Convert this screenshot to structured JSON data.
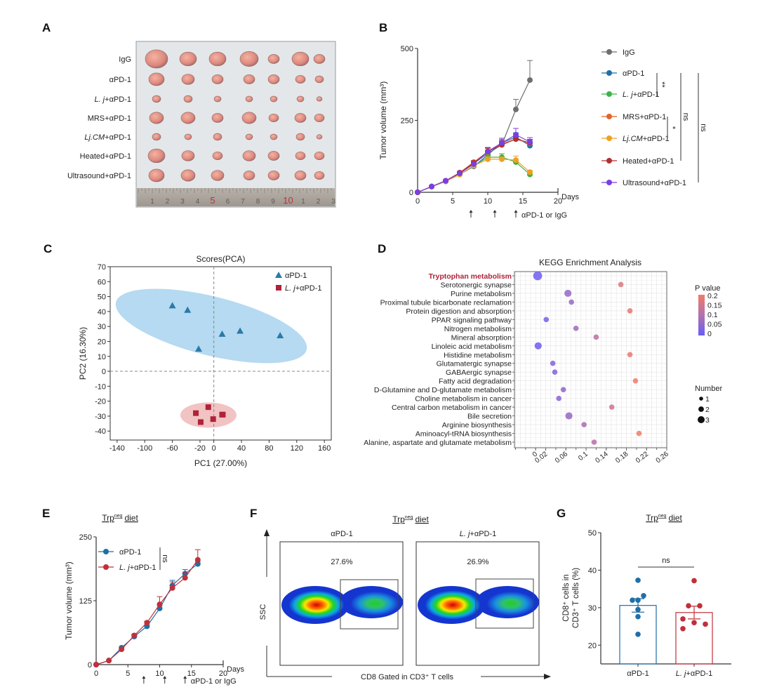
{
  "panels": {
    "A": {
      "label": "A",
      "rows": [
        {
          "text": "IgG"
        },
        {
          "text": "αPD-1"
        },
        {
          "italic": "L. j",
          "text": "+αPD-1"
        },
        {
          "text": "MRS+αPD-1"
        },
        {
          "italic": "Lj.CM",
          "text": "+αPD-1"
        },
        {
          "text": "Heated+αPD-1"
        },
        {
          "text": "Ultrasound+αPD-1"
        }
      ],
      "ruler_labels": [
        "1",
        "2",
        "3",
        "4",
        "5",
        "6",
        "7",
        "8",
        "9",
        "10",
        "1",
        "2",
        "3"
      ],
      "ruler_highlight_color": "#c0303a"
    },
    "B": {
      "label": "B"
    },
    "C": {
      "label": "C"
    },
    "D": {
      "label": "D"
    },
    "E": {
      "label": "E",
      "title": {
        "base": "Trp",
        "sup": "neg",
        "rest": "diet"
      }
    },
    "F": {
      "label": "F",
      "title": {
        "base": "Trp",
        "sup": "neg",
        "rest": "diet"
      },
      "plots": [
        {
          "label": {
            "text": "αPD-1"
          },
          "percent": "27.6%"
        },
        {
          "label": {
            "italic": "L. j",
            "text": "+αPD-1"
          },
          "percent": "26.9%"
        }
      ],
      "y_axis_label": "SSC",
      "x_axis_label": "CD8   Gated in CD3⁺ T cells"
    },
    "G": {
      "label": "G",
      "title": {
        "base": "Trp",
        "sup": "neg",
        "rest": "diet"
      }
    }
  },
  "chart_data": [
    {
      "id": "B",
      "type": "line",
      "ylabel": "Tumor volume (mm³)",
      "xlabel": "Days",
      "x": [
        0,
        2,
        4,
        6,
        8,
        10,
        12,
        14,
        16
      ],
      "xlim": [
        0,
        20
      ],
      "ylim": [
        0,
        500
      ],
      "xticks": [
        0,
        5,
        10,
        15,
        20
      ],
      "yticks": [
        0,
        250,
        500
      ],
      "treatment_days": [
        7.6,
        11,
        14
      ],
      "treatment_label": "αPD-1 or IgG",
      "series": [
        {
          "name": {
            "text": "IgG"
          },
          "color": "#6e6e6e",
          "values": [
            0,
            20,
            38,
            68,
            100,
            135,
            165,
            288,
            390
          ],
          "error": [
            0,
            2,
            3,
            5,
            8,
            10,
            12,
            35,
            68
          ]
        },
        {
          "name": {
            "text": "αPD-1"
          },
          "color": "#1f6fa8",
          "values": [
            0,
            20,
            38,
            62,
            90,
            130,
            172,
            192,
            162
          ],
          "error": [
            0,
            2,
            3,
            4,
            6,
            10,
            12,
            15,
            10
          ]
        },
        {
          "name": {
            "italic": "L. j",
            "text": "+αPD-1"
          },
          "color": "#3cb44b",
          "values": [
            0,
            20,
            38,
            62,
            92,
            122,
            122,
            105,
            62
          ],
          "error": [
            0,
            2,
            3,
            4,
            6,
            10,
            12,
            8,
            6
          ]
        },
        {
          "name": {
            "text": "MRS+αPD-1"
          },
          "color": "#e0662a",
          "values": [
            0,
            20,
            40,
            68,
            105,
            140,
            168,
            185,
            170
          ],
          "error": [
            0,
            2,
            3,
            4,
            6,
            12,
            15,
            15,
            12
          ]
        },
        {
          "name": {
            "italic": "Lj.CM",
            "text": "+αPD-1"
          },
          "color": "#f0a020",
          "values": [
            0,
            20,
            38,
            62,
            92,
            115,
            115,
            112,
            70
          ],
          "error": [
            0,
            2,
            3,
            4,
            6,
            8,
            8,
            14,
            6
          ]
        },
        {
          "name": {
            "text": "Heated+αPD-1"
          },
          "color": "#b0302e",
          "values": [
            0,
            20,
            40,
            68,
            102,
            142,
            165,
            185,
            172
          ],
          "error": [
            0,
            2,
            3,
            4,
            6,
            12,
            14,
            15,
            12
          ]
        },
        {
          "name": {
            "text": "Ultrasound+αPD-1"
          },
          "color": "#7a3fe0",
          "values": [
            0,
            20,
            40,
            66,
            98,
            142,
            172,
            200,
            175
          ],
          "error": [
            0,
            2,
            3,
            4,
            6,
            14,
            16,
            22,
            15
          ]
        }
      ],
      "significance": [
        {
          "between": [
            "αPD-1",
            "L. j+αPD-1"
          ],
          "label": "**"
        },
        {
          "between": [
            "MRS+αPD-1",
            "Lj.CM+αPD-1"
          ],
          "label": "*"
        },
        {
          "between": [
            "αPD-1",
            "Heated+αPD-1"
          ],
          "label": "ns"
        },
        {
          "between": [
            "αPD-1",
            "Ultrasound+αPD-1"
          ],
          "label": "ns"
        }
      ]
    },
    {
      "id": "C",
      "type": "scatter",
      "title": "Scores(PCA)",
      "xlabel": "PC1 (27.00%)",
      "ylabel": "PC2 (16.30%)",
      "xlim": [
        -150,
        170
      ],
      "ylim": [
        -46,
        70
      ],
      "xticks": [
        -140,
        -100,
        -60,
        -20,
        0,
        40,
        80,
        120,
        160
      ],
      "yticks": [
        70,
        60,
        50,
        40,
        30,
        20,
        10,
        0,
        -10,
        -20,
        -30,
        -40
      ],
      "legend": "top-right",
      "series": [
        {
          "name": {
            "text": "αPD-1"
          },
          "marker": "triangle",
          "color": "#2a7aa8",
          "ellipse_color": "#a8d4ee",
          "points": [
            [
              -60,
              44
            ],
            [
              -38,
              41
            ],
            [
              -22,
              15
            ],
            [
              12,
              25
            ],
            [
              38,
              27
            ],
            [
              96,
              24
            ]
          ]
        },
        {
          "name": {
            "italic": "L. j",
            "text": "+αPD-1"
          },
          "marker": "square",
          "color": "#b0223a",
          "ellipse_color": "#f0b8b8",
          "points": [
            [
              -26,
              -28
            ],
            [
              -8,
              -24
            ],
            [
              -19,
              -34
            ],
            [
              -1,
              -32
            ],
            [
              12,
              -29
            ],
            [
              13,
              -29
            ]
          ]
        }
      ]
    },
    {
      "id": "D",
      "type": "scatter",
      "title": "KEGG Enrichment Analysis",
      "xlim": [
        -0.042,
        0.26
      ],
      "xticks": [
        "0",
        "0.02",
        "0.06",
        "0.1",
        "0.14",
        "0.18",
        "0.22",
        "0.26"
      ],
      "highlight_color": "#b0223a",
      "color_legend": {
        "title": "P value",
        "ticks": [
          "0.2",
          "0.15",
          "0.1",
          "0.05",
          "0"
        ],
        "low_color": "#6a5cf5",
        "high_color": "#f27a68"
      },
      "size_legend": {
        "title": "Number",
        "values": [
          "1",
          "2",
          "3"
        ]
      },
      "pathways": [
        {
          "name": "Tryptophan metabolism",
          "x": 0.004,
          "number": 3,
          "highlight": true
        },
        {
          "name": "Serotonergic synapse",
          "x": 0.169,
          "number": 1
        },
        {
          "name": "Purine metabolism",
          "x": 0.064,
          "number": 2
        },
        {
          "name": "Proximal tubule bicarbonate reclamation",
          "x": 0.071,
          "number": 1
        },
        {
          "name": "Protein digestion and absorption",
          "x": 0.187,
          "number": 1
        },
        {
          "name": "PPAR signaling pathway",
          "x": 0.021,
          "number": 1
        },
        {
          "name": "Nitrogen metabolism",
          "x": 0.08,
          "number": 1
        },
        {
          "name": "Mineral absorption",
          "x": 0.12,
          "number": 1
        },
        {
          "name": "Linoleic acid metabolism",
          "x": 0.005,
          "number": 2
        },
        {
          "name": "Histidine metabolism",
          "x": 0.187,
          "number": 1
        },
        {
          "name": "Glutamatergic synapse",
          "x": 0.034,
          "number": 1
        },
        {
          "name": "GABAergic synapse",
          "x": 0.038,
          "number": 1
        },
        {
          "name": "Fatty acid degradation",
          "x": 0.198,
          "number": 1
        },
        {
          "name": "D-Glutamine and D-glutamate metabolism",
          "x": 0.055,
          "number": 1
        },
        {
          "name": "Choline metabolism in cancer",
          "x": 0.046,
          "number": 1
        },
        {
          "name": "Central carbon metabolism in cancer",
          "x": 0.151,
          "number": 1
        },
        {
          "name": "Bile secretion",
          "x": 0.066,
          "number": 2
        },
        {
          "name": "Arginine biosynthesis",
          "x": 0.096,
          "number": 1
        },
        {
          "name": "Aminoacyl-tRNA biosynthesis",
          "x": 0.205,
          "number": 1
        },
        {
          "name": "Alanine, aspartate and glutamate metabolism",
          "x": 0.116,
          "number": 1
        }
      ]
    },
    {
      "id": "E",
      "type": "line",
      "ylabel": "Tumor volume (mm³)",
      "xlabel": "Days",
      "x": [
        0,
        2,
        4,
        6,
        8,
        10,
        12,
        14,
        16
      ],
      "xlim": [
        0,
        20
      ],
      "ylim": [
        0,
        250
      ],
      "xticks": [
        0,
        5,
        10,
        15,
        20
      ],
      "yticks": [
        0,
        125,
        250
      ],
      "treatment_days": [
        7.5,
        10.8,
        14
      ],
      "treatment_label": "αPD-1 or IgG",
      "series": [
        {
          "name": {
            "text": "αPD-1"
          },
          "color": "#1f6fa8",
          "values": [
            0,
            8,
            33,
            55,
            75,
            110,
            155,
            178,
            197
          ],
          "error": [
            0,
            1,
            2,
            3,
            3,
            5,
            10,
            8,
            4
          ]
        },
        {
          "name": {
            "italic": "L. j",
            "text": "+αPD-1"
          },
          "color": "#c0303a",
          "values": [
            0,
            8,
            30,
            57,
            82,
            118,
            150,
            170,
            205
          ],
          "error": [
            0,
            1,
            2,
            3,
            3,
            15,
            12,
            10,
            20
          ]
        }
      ],
      "significance": [
        {
          "between": [
            "αPD-1",
            "L. j+αPD-1"
          ],
          "label": "ns"
        }
      ]
    },
    {
      "id": "G",
      "type": "bar",
      "ylabel_lines": [
        "CD8⁺ cells in",
        "CD3⁺ T cells (%)"
      ],
      "ylim": [
        15,
        50
      ],
      "yticks": [
        20,
        30,
        40,
        50
      ],
      "categories": [
        {
          "text": "αPD-1"
        },
        {
          "italic": "L. j",
          "text": "+αPD-1"
        }
      ],
      "values": [
        30.6,
        28.7
      ],
      "sem": [
        1.8,
        1.7
      ],
      "colors": [
        "#1f6fa8",
        "#c0303a"
      ],
      "points": [
        [
          37.3,
          33.2,
          32.0,
          32.0,
          29.5,
          27.6,
          22.9
        ],
        [
          37.2,
          30.5,
          30.5,
          27.0,
          26.0,
          25.6,
          24.4
        ]
      ],
      "significance": "ns"
    }
  ]
}
